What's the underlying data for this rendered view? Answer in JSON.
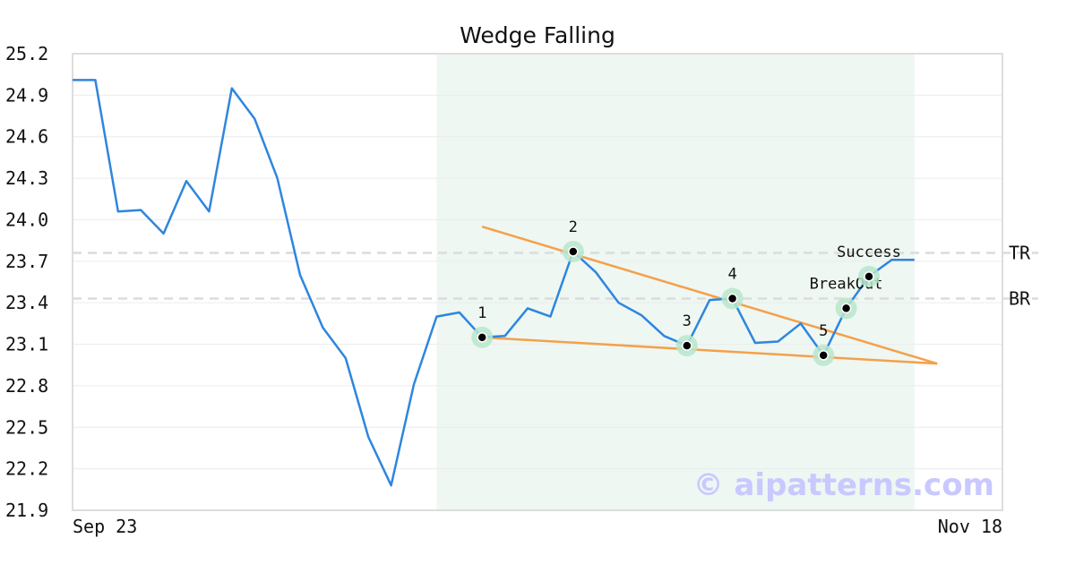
{
  "chart_data": {
    "type": "line",
    "title": "Wedge Falling",
    "xlabel": "",
    "ylabel": "",
    "ylim": [
      21.9,
      25.2
    ],
    "y_ticks": [
      "25.2",
      "24.9",
      "24.6",
      "24.3",
      "24.0",
      "23.7",
      "23.4",
      "23.1",
      "22.8",
      "22.5",
      "22.2",
      "21.9"
    ],
    "x_tick_labels": [
      {
        "index": 0,
        "label": "Sep 23"
      },
      {
        "index": 41,
        "label": "Nov 18"
      }
    ],
    "x_count": 42,
    "series": [
      {
        "color": "#2e86de",
        "values": [
          25.01,
          25.01,
          24.06,
          24.07,
          23.9,
          24.28,
          24.06,
          24.95,
          24.73,
          24.3,
          23.6,
          23.22,
          23.0,
          22.43,
          22.08,
          22.81,
          23.3,
          23.33,
          23.15,
          23.16,
          23.36,
          23.3,
          23.77,
          23.62,
          23.4,
          23.31,
          23.16,
          23.09,
          23.42,
          23.43,
          23.11,
          23.12,
          23.25,
          23.02,
          23.36,
          23.59,
          23.71,
          23.71
        ]
      }
    ],
    "shaded_region": {
      "start_index": 16,
      "end_index": 37,
      "color": "#eef7f2"
    },
    "trendlines": [
      {
        "color": "#f5a04a",
        "from": {
          "index": 18,
          "value": 23.95
        },
        "to": {
          "index": 38,
          "value": 22.96
        }
      },
      {
        "color": "#f5a04a",
        "from": {
          "index": 18,
          "value": 23.15
        },
        "to": {
          "index": 38,
          "value": 22.96
        }
      }
    ],
    "pattern_points": [
      {
        "label": "1",
        "index": 18,
        "value": 23.15
      },
      {
        "label": "2",
        "index": 22,
        "value": 23.77
      },
      {
        "label": "3",
        "index": 27,
        "value": 23.09
      },
      {
        "label": "4",
        "index": 29,
        "value": 23.43
      },
      {
        "label": "5",
        "index": 33,
        "value": 23.02
      }
    ],
    "annotations": [
      {
        "label": "BreakOut",
        "index": 34,
        "value": 23.36
      },
      {
        "label": "Success",
        "index": 35,
        "value": 23.59
      }
    ],
    "levels": [
      {
        "label": "TR",
        "value": 23.76
      },
      {
        "label": "BR",
        "value": 23.43
      }
    ],
    "grid": true,
    "watermark": "© aipatterns.com",
    "colors": {
      "line": "#2e86de",
      "trend": "#f5a04a",
      "marker_halo": "#b9e6cc",
      "level": "#dcdcdc",
      "grid": "#ececec",
      "frame": "#dddddd"
    }
  }
}
